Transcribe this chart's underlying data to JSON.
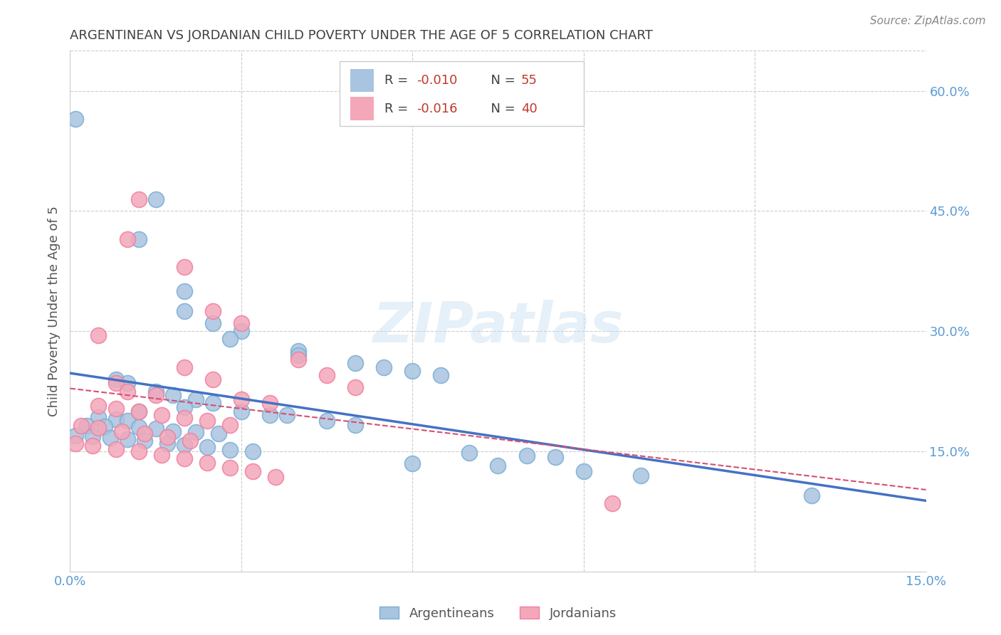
{
  "title": "ARGENTINEAN VS JORDANIAN CHILD POVERTY UNDER THE AGE OF 5 CORRELATION CHART",
  "source": "Source: ZipAtlas.com",
  "ylabel": "Child Poverty Under the Age of 5",
  "watermark": "ZIPatlas",
  "xlim": [
    0.0,
    0.15
  ],
  "ylim": [
    0.0,
    0.65
  ],
  "xticks": [
    0.0,
    0.03,
    0.06,
    0.09,
    0.12,
    0.15
  ],
  "xtick_labels": [
    "0.0%",
    "",
    "",
    "",
    "",
    "15.0%"
  ],
  "ytick_positions": [
    0.15,
    0.3,
    0.45,
    0.6
  ],
  "ytick_labels": [
    "15.0%",
    "30.0%",
    "45.0%",
    "60.0%"
  ],
  "legend_label1": "Argentineans",
  "legend_label2": "Jordanians",
  "argentina_color": "#a8c4e0",
  "jordan_color": "#f4a7b9",
  "argentina_edge_color": "#7aafd4",
  "jordan_edge_color": "#f080a0",
  "argentina_line_color": "#4472c4",
  "jordan_line_color": "#d45070",
  "background_color": "#ffffff",
  "grid_color": "#cccccc",
  "title_color": "#404040",
  "axis_label_color": "#5b9bd5",
  "argentina_scatter": [
    [
      0.001,
      0.565
    ],
    [
      0.015,
      0.465
    ],
    [
      0.012,
      0.415
    ],
    [
      0.02,
      0.35
    ],
    [
      0.02,
      0.325
    ],
    [
      0.025,
      0.31
    ],
    [
      0.03,
      0.3
    ],
    [
      0.028,
      0.29
    ],
    [
      0.04,
      0.275
    ],
    [
      0.04,
      0.27
    ],
    [
      0.05,
      0.26
    ],
    [
      0.055,
      0.255
    ],
    [
      0.06,
      0.25
    ],
    [
      0.065,
      0.245
    ],
    [
      0.008,
      0.24
    ],
    [
      0.01,
      0.235
    ],
    [
      0.015,
      0.225
    ],
    [
      0.018,
      0.22
    ],
    [
      0.022,
      0.215
    ],
    [
      0.025,
      0.21
    ],
    [
      0.02,
      0.205
    ],
    [
      0.012,
      0.2
    ],
    [
      0.03,
      0.2
    ],
    [
      0.035,
      0.195
    ],
    [
      0.038,
      0.195
    ],
    [
      0.005,
      0.193
    ],
    [
      0.008,
      0.19
    ],
    [
      0.01,
      0.188
    ],
    [
      0.045,
      0.188
    ],
    [
      0.05,
      0.183
    ],
    [
      0.003,
      0.182
    ],
    [
      0.006,
      0.181
    ],
    [
      0.012,
      0.18
    ],
    [
      0.015,
      0.178
    ],
    [
      0.018,
      0.175
    ],
    [
      0.022,
      0.174
    ],
    [
      0.026,
      0.172
    ],
    [
      0.001,
      0.17
    ],
    [
      0.004,
      0.169
    ],
    [
      0.007,
      0.167
    ],
    [
      0.01,
      0.165
    ],
    [
      0.013,
      0.163
    ],
    [
      0.017,
      0.16
    ],
    [
      0.02,
      0.158
    ],
    [
      0.024,
      0.155
    ],
    [
      0.028,
      0.152
    ],
    [
      0.032,
      0.15
    ],
    [
      0.07,
      0.148
    ],
    [
      0.08,
      0.145
    ],
    [
      0.085,
      0.143
    ],
    [
      0.06,
      0.135
    ],
    [
      0.075,
      0.132
    ],
    [
      0.09,
      0.125
    ],
    [
      0.1,
      0.12
    ],
    [
      0.13,
      0.095
    ]
  ],
  "jordan_scatter": [
    [
      0.012,
      0.465
    ],
    [
      0.01,
      0.415
    ],
    [
      0.02,
      0.38
    ],
    [
      0.025,
      0.325
    ],
    [
      0.03,
      0.31
    ],
    [
      0.005,
      0.295
    ],
    [
      0.04,
      0.265
    ],
    [
      0.02,
      0.255
    ],
    [
      0.045,
      0.245
    ],
    [
      0.025,
      0.24
    ],
    [
      0.008,
      0.235
    ],
    [
      0.05,
      0.23
    ],
    [
      0.01,
      0.225
    ],
    [
      0.015,
      0.22
    ],
    [
      0.03,
      0.215
    ],
    [
      0.035,
      0.21
    ],
    [
      0.005,
      0.207
    ],
    [
      0.008,
      0.203
    ],
    [
      0.012,
      0.2
    ],
    [
      0.016,
      0.195
    ],
    [
      0.02,
      0.192
    ],
    [
      0.024,
      0.188
    ],
    [
      0.028,
      0.183
    ],
    [
      0.002,
      0.182
    ],
    [
      0.005,
      0.179
    ],
    [
      0.009,
      0.175
    ],
    [
      0.013,
      0.172
    ],
    [
      0.017,
      0.168
    ],
    [
      0.021,
      0.163
    ],
    [
      0.001,
      0.16
    ],
    [
      0.004,
      0.157
    ],
    [
      0.008,
      0.153
    ],
    [
      0.012,
      0.15
    ],
    [
      0.016,
      0.146
    ],
    [
      0.02,
      0.141
    ],
    [
      0.024,
      0.136
    ],
    [
      0.028,
      0.13
    ],
    [
      0.032,
      0.125
    ],
    [
      0.036,
      0.118
    ],
    [
      0.095,
      0.085
    ]
  ]
}
